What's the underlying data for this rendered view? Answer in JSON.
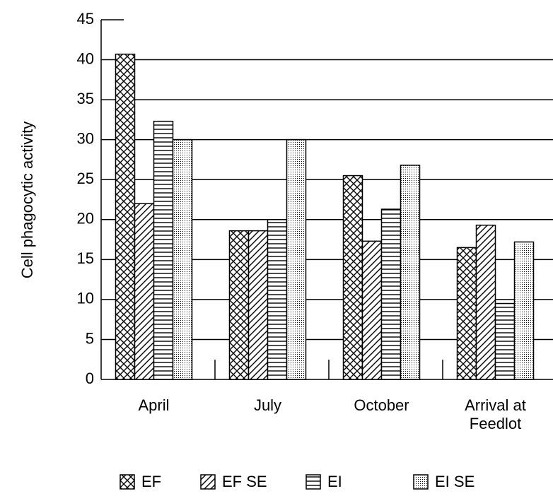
{
  "chart_data": {
    "type": "bar",
    "ylabel": "Cell phagocytic activity",
    "categories": [
      "April",
      "July",
      "October",
      "Arrival at\nFeedlot"
    ],
    "series": [
      {
        "name": "EF",
        "color": "#000000",
        "pattern": "crosshatch",
        "values": [
          40.7,
          18.6,
          25.5,
          16.5
        ]
      },
      {
        "name": "EF SE",
        "color": "#000000",
        "pattern": "diagonal",
        "values": [
          22,
          18.6,
          17.3,
          19.3
        ]
      },
      {
        "name": "EI",
        "color": "#000000",
        "pattern": "horizontal",
        "values": [
          32.3,
          20,
          21.3,
          9.5
        ]
      },
      {
        "name": "EI SE",
        "color": "#000000",
        "pattern": "dots",
        "values": [
          30,
          30,
          26.8,
          17.2
        ]
      }
    ],
    "ylim": [
      0,
      45
    ],
    "yticks": [
      0,
      5,
      10,
      15,
      20,
      25,
      30,
      35,
      40,
      45
    ],
    "grid": true,
    "legend": "bottom"
  }
}
